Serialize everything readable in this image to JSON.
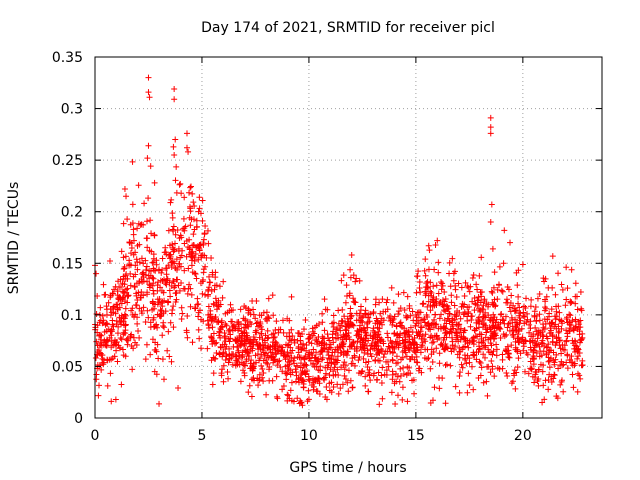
{
  "chart_data": {
    "type": "scatter",
    "title": "Day 174 of 2021, SRMTID for receiver picl",
    "xlabel": "GPS time / hours",
    "ylabel": "SRMTID / TECUs",
    "xlim": [
      0,
      23.7
    ],
    "ylim": [
      0,
      0.35
    ],
    "x_ticks": [
      0,
      5,
      10,
      15,
      20
    ],
    "x_tick_labels": [
      "0",
      "5",
      "10",
      "15",
      "20"
    ],
    "y_ticks": [
      0,
      0.05,
      0.1,
      0.15,
      0.2,
      0.25,
      0.3,
      0.35
    ],
    "y_tick_labels": [
      "0",
      "0.05",
      "0.1",
      "0.15",
      "0.2",
      "0.25",
      "0.3",
      "0.35"
    ],
    "grid": true,
    "marker": "+",
    "color": "#ff0000",
    "x_range_hours": [
      0,
      22.8
    ],
    "point_count": 2600,
    "series": [
      {
        "name": "SRMTID",
        "profile": [
          {
            "x": 0.0,
            "center": 0.075,
            "spread": 0.025
          },
          {
            "x": 0.5,
            "center": 0.08,
            "spread": 0.025
          },
          {
            "x": 1.0,
            "center": 0.09,
            "spread": 0.03
          },
          {
            "x": 1.5,
            "center": 0.12,
            "spread": 0.04
          },
          {
            "x": 2.0,
            "center": 0.13,
            "spread": 0.045
          },
          {
            "x": 2.5,
            "center": 0.13,
            "spread": 0.05
          },
          {
            "x": 3.0,
            "center": 0.11,
            "spread": 0.04
          },
          {
            "x": 3.5,
            "center": 0.15,
            "spread": 0.05
          },
          {
            "x": 4.0,
            "center": 0.16,
            "spread": 0.05
          },
          {
            "x": 4.5,
            "center": 0.165,
            "spread": 0.045
          },
          {
            "x": 5.0,
            "center": 0.15,
            "spread": 0.04
          },
          {
            "x": 5.5,
            "center": 0.1,
            "spread": 0.03
          },
          {
            "x": 6.0,
            "center": 0.07,
            "spread": 0.025
          },
          {
            "x": 7.0,
            "center": 0.07,
            "spread": 0.025
          },
          {
            "x": 8.0,
            "center": 0.065,
            "spread": 0.025
          },
          {
            "x": 9.0,
            "center": 0.055,
            "spread": 0.022
          },
          {
            "x": 10.0,
            "center": 0.055,
            "spread": 0.022
          },
          {
            "x": 11.0,
            "center": 0.06,
            "spread": 0.025
          },
          {
            "x": 12.0,
            "center": 0.09,
            "spread": 0.03
          },
          {
            "x": 12.5,
            "center": 0.075,
            "spread": 0.025
          },
          {
            "x": 13.0,
            "center": 0.07,
            "spread": 0.025
          },
          {
            "x": 14.0,
            "center": 0.07,
            "spread": 0.025
          },
          {
            "x": 15.0,
            "center": 0.075,
            "spread": 0.028
          },
          {
            "x": 15.5,
            "center": 0.095,
            "spread": 0.035
          },
          {
            "x": 16.0,
            "center": 0.095,
            "spread": 0.035
          },
          {
            "x": 17.0,
            "center": 0.085,
            "spread": 0.03
          },
          {
            "x": 18.0,
            "center": 0.09,
            "spread": 0.03
          },
          {
            "x": 19.0,
            "center": 0.085,
            "spread": 0.03
          },
          {
            "x": 20.0,
            "center": 0.08,
            "spread": 0.03
          },
          {
            "x": 21.0,
            "center": 0.07,
            "spread": 0.03
          },
          {
            "x": 22.0,
            "center": 0.08,
            "spread": 0.03
          },
          {
            "x": 22.8,
            "center": 0.075,
            "spread": 0.025
          }
        ],
        "outliers": [
          {
            "x": 2.5,
            "y": 0.33
          },
          {
            "x": 2.5,
            "y": 0.316
          },
          {
            "x": 2.55,
            "y": 0.311
          },
          {
            "x": 2.5,
            "y": 0.264
          },
          {
            "x": 2.45,
            "y": 0.252
          },
          {
            "x": 3.7,
            "y": 0.319
          },
          {
            "x": 3.7,
            "y": 0.309
          },
          {
            "x": 3.75,
            "y": 0.27
          },
          {
            "x": 3.7,
            "y": 0.255
          },
          {
            "x": 4.3,
            "y": 0.276
          },
          {
            "x": 4.3,
            "y": 0.262
          },
          {
            "x": 4.35,
            "y": 0.258
          },
          {
            "x": 1.4,
            "y": 0.222
          },
          {
            "x": 1.45,
            "y": 0.215
          },
          {
            "x": 18.5,
            "y": 0.291
          },
          {
            "x": 18.5,
            "y": 0.282
          },
          {
            "x": 18.5,
            "y": 0.276
          },
          {
            "x": 18.55,
            "y": 0.207
          },
          {
            "x": 18.5,
            "y": 0.19
          },
          {
            "x": 18.6,
            "y": 0.164
          },
          {
            "x": 16.0,
            "y": 0.172
          },
          {
            "x": 15.6,
            "y": 0.167
          },
          {
            "x": 12.0,
            "y": 0.158
          },
          {
            "x": 21.4,
            "y": 0.157
          },
          {
            "x": 19.4,
            "y": 0.17
          },
          {
            "x": 19.1,
            "y": 0.15
          },
          {
            "x": 0.0,
            "y": 0.148
          },
          {
            "x": 0.05,
            "y": 0.14
          },
          {
            "x": 20.9,
            "y": 0.015
          },
          {
            "x": 21.0,
            "y": 0.018
          },
          {
            "x": 9.3,
            "y": 0.016
          },
          {
            "x": 10.0,
            "y": 0.018
          }
        ]
      }
    ]
  }
}
